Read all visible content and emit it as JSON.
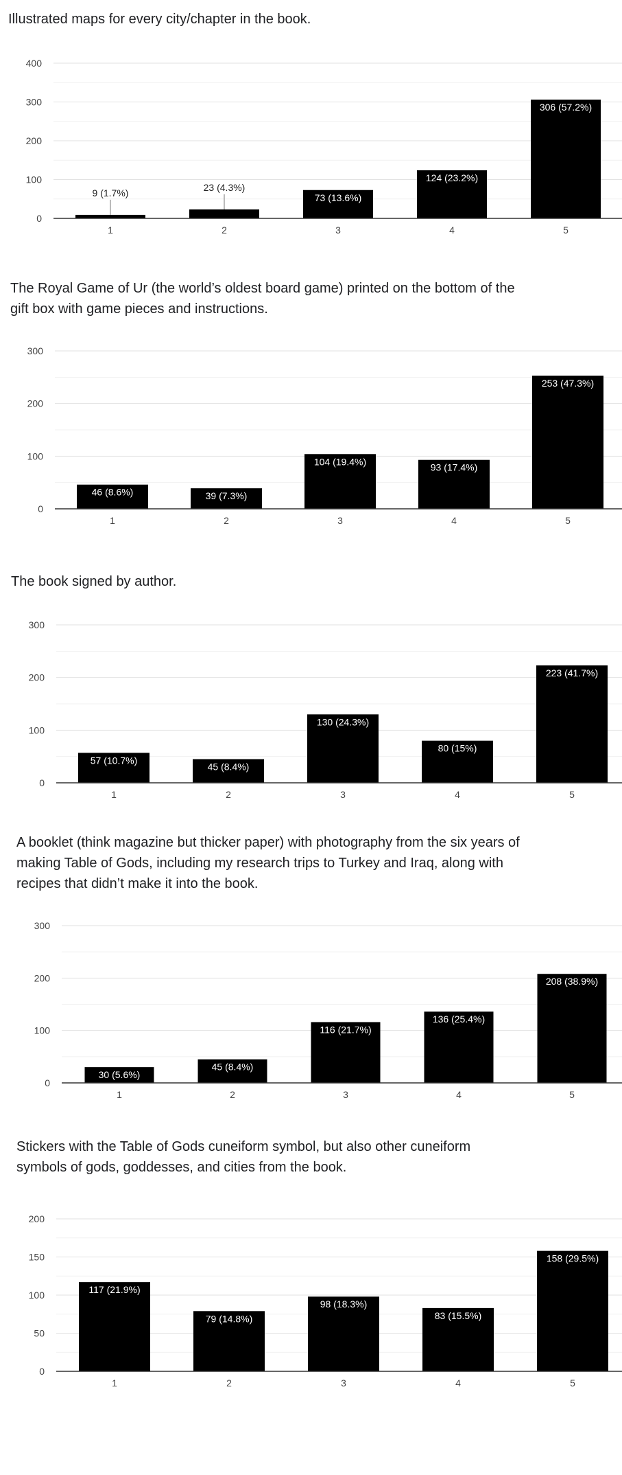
{
  "colors": {
    "bar": "#000000",
    "grid_major": "#e2e2e2",
    "grid_minor": "#f1f1f1",
    "baseline": "#333333",
    "tick_text": "#444444",
    "label_inside": "#ffffff",
    "label_outside": "#222222"
  },
  "questions": [
    {
      "lines": [
        "Illustrated maps for every city/chapter in the book."
      ]
    },
    {
      "lines": [
        "The Royal Game of Ur (the world’s oldest board game) printed on the bottom of the",
        "gift box with game pieces and instructions."
      ]
    },
    {
      "lines": [
        "The book signed by author."
      ]
    },
    {
      "lines": [
        "A booklet (think magazine but thicker paper) with photography from the six years of",
        "making Table of Gods, including my research trips to Turkey and Iraq, along with",
        "recipes that didn’t make it into the book."
      ]
    },
    {
      "lines": [
        "Stickers with the Table of Gods cuneiform symbol, but also other cuneiform",
        "symbols of gods, goddesses, and cities from the book."
      ]
    }
  ],
  "chart_data": [
    {
      "type": "bar",
      "categories": [
        "1",
        "2",
        "3",
        "4",
        "5"
      ],
      "values": [
        9,
        23,
        73,
        124,
        306
      ],
      "data_labels": [
        "9 (1.7%)",
        "23 (4.3%)",
        "73 (13.6%)",
        "124 (23.2%)",
        "306 (57.2%)"
      ],
      "ylim": [
        0,
        400
      ],
      "yticks": [
        0,
        100,
        200,
        300,
        400
      ],
      "grid": true
    },
    {
      "type": "bar",
      "categories": [
        "1",
        "2",
        "3",
        "4",
        "5"
      ],
      "values": [
        46,
        39,
        104,
        93,
        253
      ],
      "data_labels": [
        "46 (8.6%)",
        "39 (7.3%)",
        "104 (19.4%)",
        "93 (17.4%)",
        "253 (47.3%)"
      ],
      "ylim": [
        0,
        300
      ],
      "yticks": [
        0,
        100,
        200,
        300
      ],
      "grid": true
    },
    {
      "type": "bar",
      "categories": [
        "1",
        "2",
        "3",
        "4",
        "5"
      ],
      "values": [
        57,
        45,
        130,
        80,
        223
      ],
      "data_labels": [
        "57 (10.7%)",
        "45 (8.4%)",
        "130 (24.3%)",
        "80 (15%)",
        "223 (41.7%)"
      ],
      "ylim": [
        0,
        300
      ],
      "yticks": [
        0,
        100,
        200,
        300
      ],
      "grid": true
    },
    {
      "type": "bar",
      "categories": [
        "1",
        "2",
        "3",
        "4",
        "5"
      ],
      "values": [
        30,
        45,
        116,
        136,
        208
      ],
      "data_labels": [
        "30 (5.6%)",
        "45 (8.4%)",
        "116 (21.7%)",
        "136 (25.4%)",
        "208 (38.9%)"
      ],
      "ylim": [
        0,
        300
      ],
      "yticks": [
        0,
        100,
        200,
        300
      ],
      "grid": true
    },
    {
      "type": "bar",
      "categories": [
        "1",
        "2",
        "3",
        "4",
        "5"
      ],
      "values": [
        117,
        79,
        98,
        83,
        158
      ],
      "data_labels": [
        "117 (21.9%)",
        "79 (14.8%)",
        "98 (18.3%)",
        "83 (15.5%)",
        "158 (29.5%)"
      ],
      "ylim": [
        0,
        200
      ],
      "yticks": [
        0,
        50,
        100,
        150,
        200
      ],
      "grid": true
    }
  ]
}
